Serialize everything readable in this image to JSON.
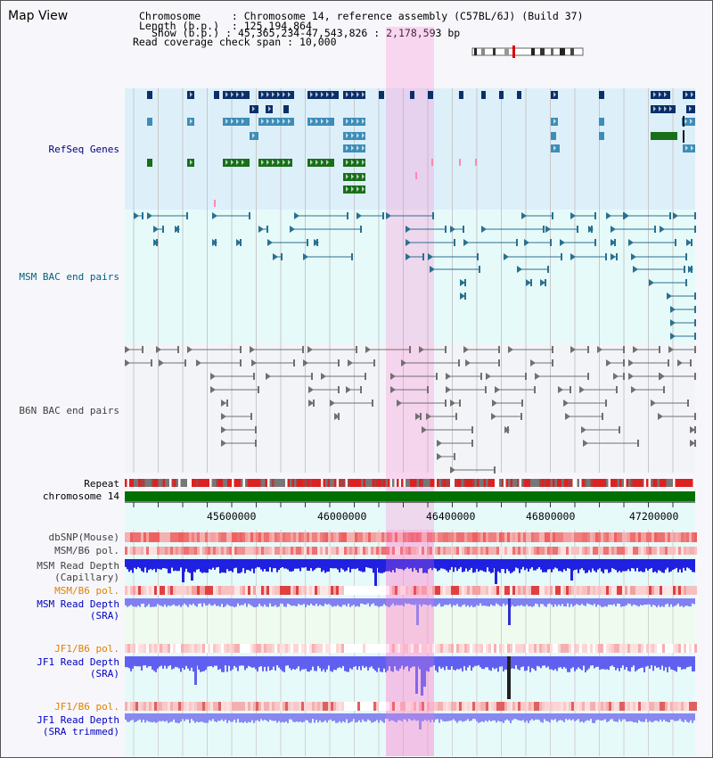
{
  "title": "Map View",
  "header": {
    "chromosome_label": "Chromosome",
    "chromosome_value": "Chromosome 14, reference assembly (C57BL/6J) (Build 37)",
    "length_label": "Length (b.p.)",
    "length_value": "125,194,864",
    "show_label": "Show (b.p.)",
    "show_value": "45,365,234-47,543,826 : 2,178,593 bp",
    "coverage_label": "Read coverage check span",
    "coverage_value": "10,000"
  },
  "tracks": {
    "refseq": "RefSeq Genes",
    "msm_bac": "MSM BAC end pairs",
    "b6n_bac": "B6N BAC end pairs",
    "repeat": "Repeat",
    "chromosome": "chromosome 14",
    "dbsnp": "dbSNP(Mouse)",
    "msm_b6_pol_1": "MSM/B6 pol.",
    "msm_depth_cap_1": "MSM Read Depth",
    "msm_depth_cap_2": "(Capillary)",
    "msm_b6_pol_2": "MSM/B6 pol.",
    "msm_depth_sra_1": "MSM Read Depth",
    "msm_depth_sra_2": "(SRA)",
    "jf1_b6_pol_1": "JF1/B6 pol.",
    "jf1_depth_sra_1": "JF1 Read Depth",
    "jf1_depth_sra_2": "(SRA)",
    "jf1_b6_pol_2": "JF1/B6 pol.",
    "jf1_depth_trim_1": "JF1 Read Depth",
    "jf1_depth_trim_2": "(SRA trimmed)"
  },
  "axis": {
    "ticks": [
      "45600000",
      "46000000",
      "46400000",
      "46800000",
      "47200000"
    ]
  },
  "colors": {
    "refseq_label": "#000080",
    "msm_bac_label": "#006080",
    "b6n_bac_label": "#404040",
    "orange_label": "#e08000",
    "blue_label": "#0000c0",
    "highlight": "#ff80d0"
  }
}
